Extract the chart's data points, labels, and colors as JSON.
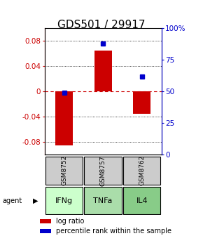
{
  "title": "GDS501 / 29917",
  "samples": [
    "GSM8752",
    "GSM8757",
    "GSM8762"
  ],
  "agents": [
    "IFNg",
    "TNFa",
    "IL4"
  ],
  "log_ratios": [
    -0.085,
    0.065,
    -0.035
  ],
  "percentile_ranks": [
    49,
    88,
    62
  ],
  "ylim_left": [
    -0.1,
    0.1
  ],
  "ylim_right": [
    0,
    100
  ],
  "yticks_left": [
    -0.08,
    -0.04,
    0.0,
    0.04,
    0.08
  ],
  "yticks_right": [
    0,
    25,
    50,
    75,
    100
  ],
  "ytick_labels_left": [
    "-0.08",
    "-0.04",
    "0",
    "0.04",
    "0.08"
  ],
  "ytick_labels_right": [
    "0",
    "25",
    "50",
    "75",
    "100%"
  ],
  "bar_color": "#cc0000",
  "dot_color": "#0000cc",
  "zero_line_color": "#cc0000",
  "sample_bg_color": "#cccccc",
  "agent_colors": [
    "#ccffcc",
    "#aaddaa",
    "#88cc88"
  ],
  "title_fontsize": 11,
  "tick_fontsize": 7.5,
  "legend_fontsize": 7
}
